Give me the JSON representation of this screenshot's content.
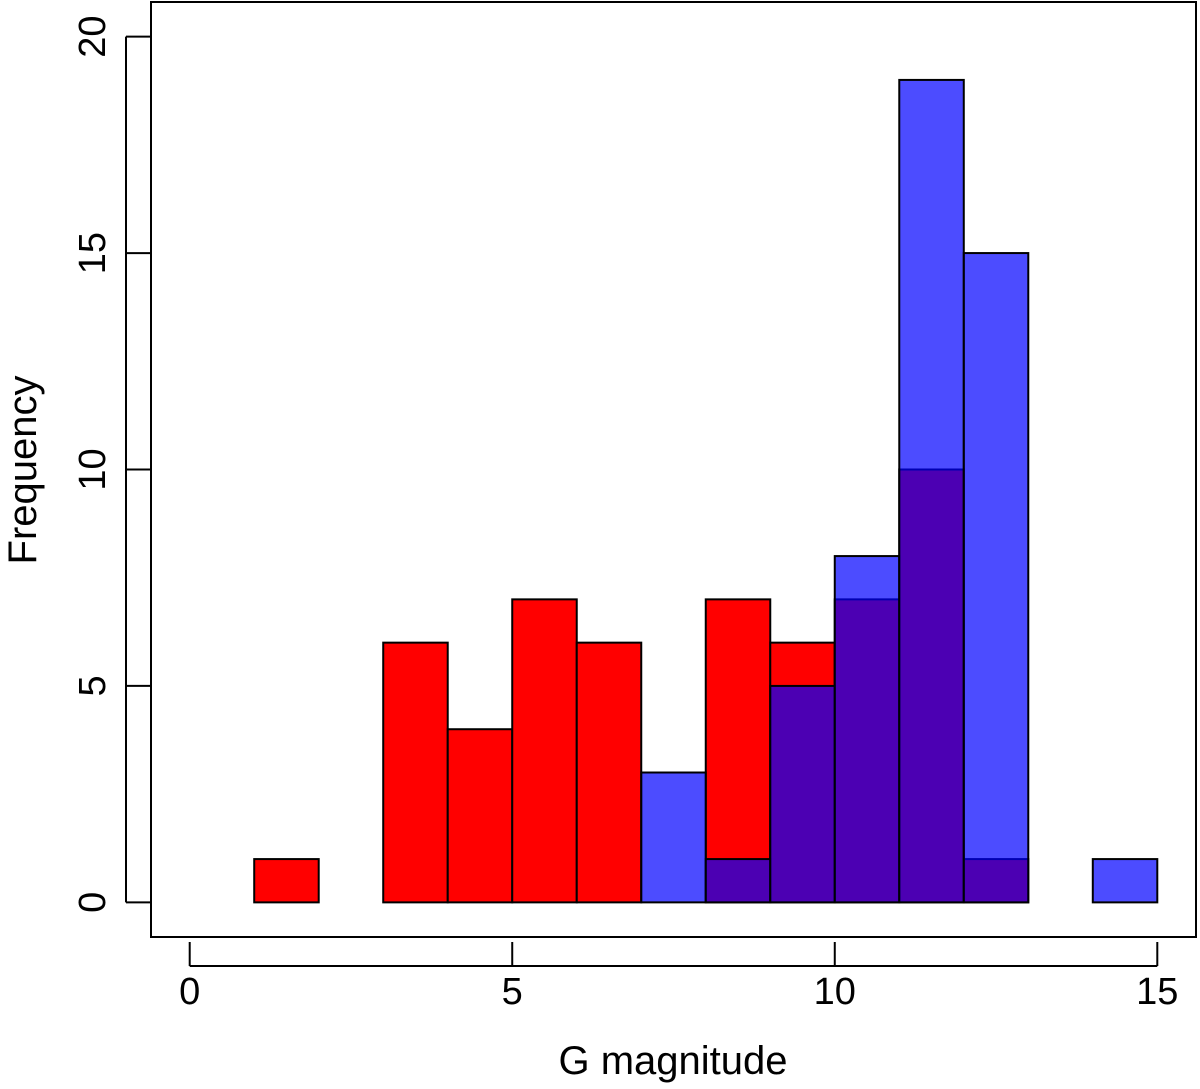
{
  "chart_data": {
    "type": "bar",
    "title": "",
    "xlabel": "G magnitude",
    "ylabel": "Frequency",
    "xlim": [
      -0.6,
      15.6
    ],
    "ylim": [
      -0.8,
      20.8
    ],
    "xticks": [
      0,
      5,
      10,
      15
    ],
    "yticks": [
      0,
      5,
      10,
      15,
      20
    ],
    "bin_edges": [
      0,
      1,
      2,
      3,
      4,
      5,
      6,
      7,
      8,
      9,
      10,
      11,
      12,
      13,
      14,
      15
    ],
    "series": [
      {
        "name": "red",
        "color": "#FF0000",
        "values": [
          0,
          1,
          0,
          6,
          4,
          7,
          6,
          0,
          7,
          6,
          7,
          10,
          1,
          0,
          0
        ]
      },
      {
        "name": "blue",
        "color": "#0000FF",
        "opacity": 0.7,
        "values": [
          0,
          0,
          0,
          0,
          0,
          0,
          0,
          3,
          1,
          5,
          8,
          19,
          15,
          0,
          1
        ]
      }
    ]
  }
}
